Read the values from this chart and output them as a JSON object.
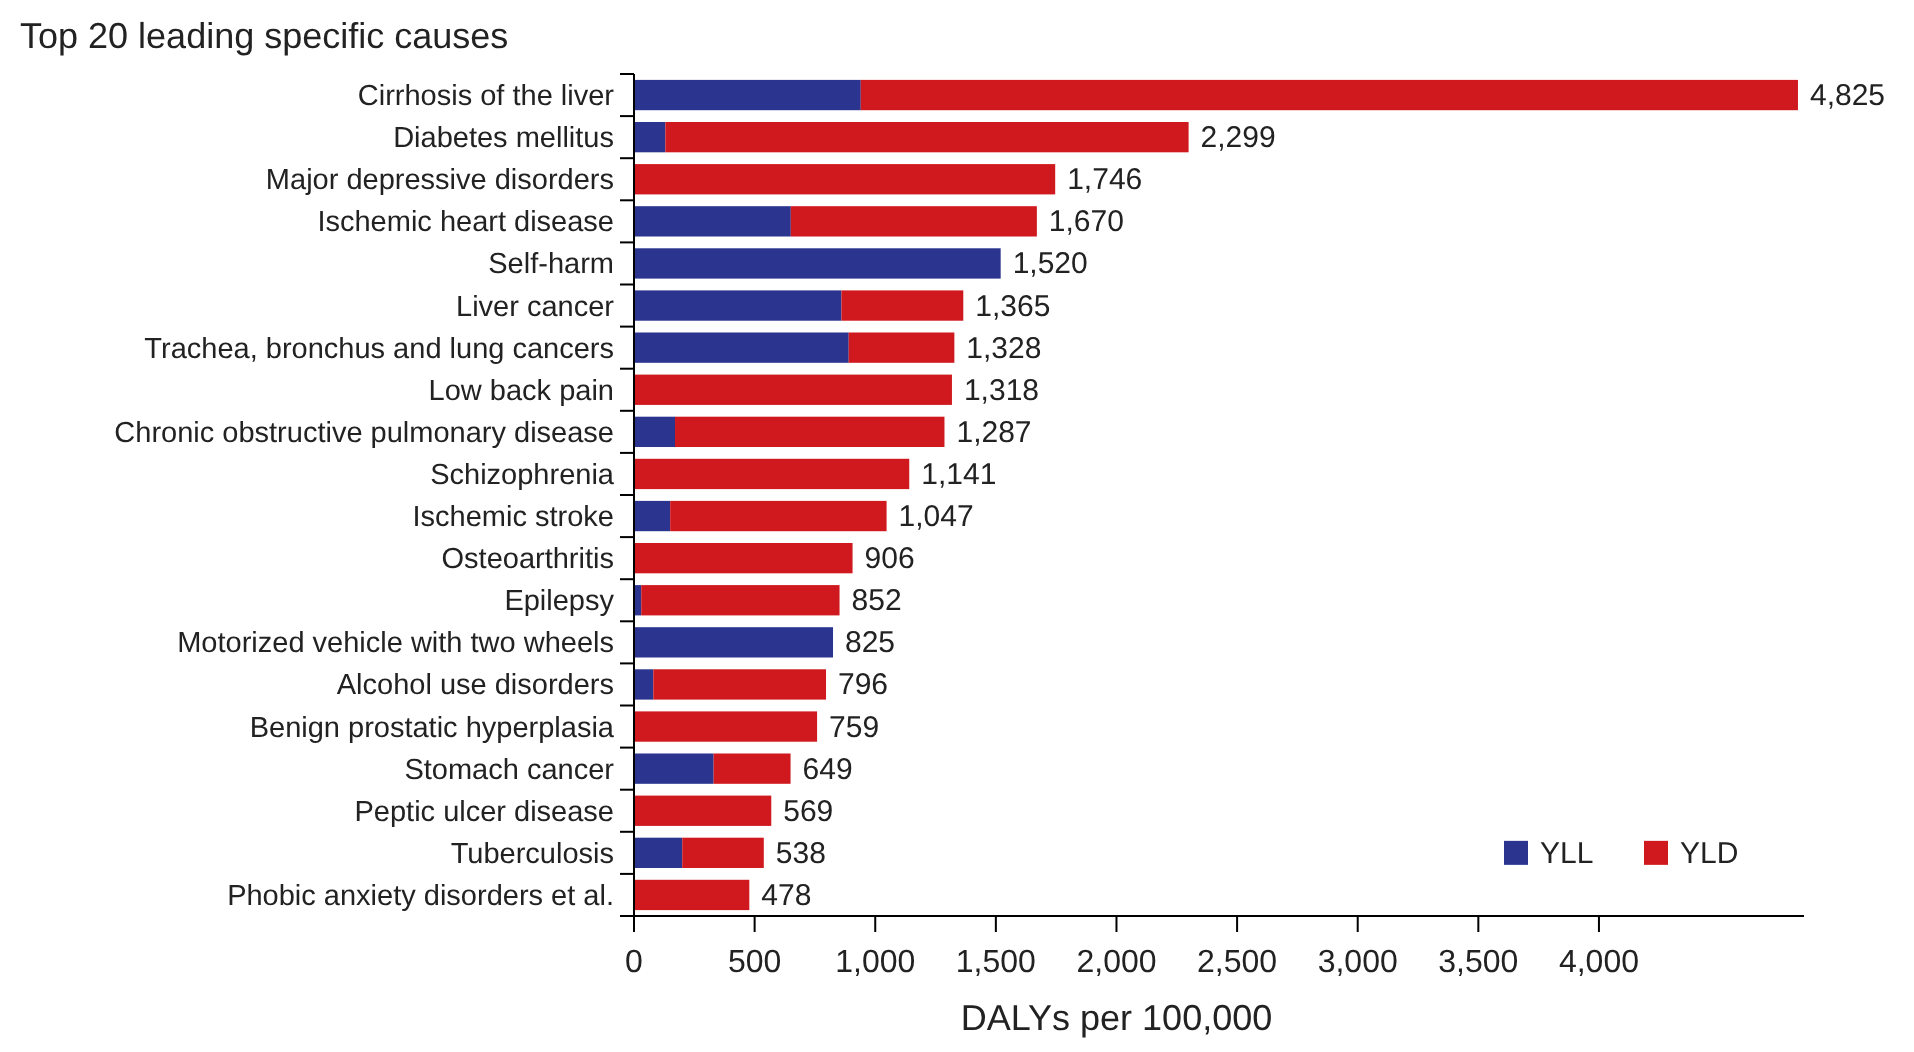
{
  "chart_data": {
    "type": "bar",
    "orientation": "horizontal",
    "stacked": true,
    "title": "Top 20 leading specific causes",
    "xlabel": "DALYs per 100,000",
    "categories": [
      "Cirrhosis of the liver",
      "Diabetes mellitus",
      "Major depressive disorders",
      "Ischemic heart disease",
      "Self-harm",
      "Liver cancer",
      "Trachea, bronchus and lung cancers",
      "Low back pain",
      "Chronic obstructive pulmonary disease",
      "Schizophrenia",
      "Ischemic stroke",
      "Osteoarthritis",
      "Epilepsy",
      "Motorized vehicle with two wheels",
      "Alcohol use disorders",
      "Benign prostatic hyperplasia",
      "Stomach cancer",
      "Peptic ulcer disease",
      "Tuberculosis",
      "Phobic anxiety disorders et al."
    ],
    "series": [
      {
        "name": "YLL",
        "color": "#2b358f",
        "values": [
          940,
          130,
          0,
          650,
          1520,
          860,
          890,
          0,
          170,
          0,
          150,
          0,
          30,
          825,
          80,
          0,
          330,
          0,
          200,
          0
        ]
      },
      {
        "name": "YLD",
        "color": "#d0191e",
        "values": [
          3885,
          2169,
          1746,
          1020,
          0,
          505,
          438,
          1318,
          1117,
          1141,
          897,
          906,
          822,
          0,
          716,
          759,
          319,
          569,
          338,
          478
        ]
      }
    ],
    "totals": [
      "4,825",
      "2,299",
      "1,746",
      "1,670",
      "1,520",
      "1,365",
      "1,328",
      "1,318",
      "1,287",
      "1,141",
      "1,047",
      "906",
      "852",
      "825",
      "796",
      "759",
      "649",
      "569",
      "538",
      "478"
    ],
    "xlim": [
      0,
      4850
    ],
    "xticks": [
      {
        "value": 0,
        "label": "0"
      },
      {
        "value": 500,
        "label": "500"
      },
      {
        "value": 1000,
        "label": "1,000"
      },
      {
        "value": 1500,
        "label": "1,500"
      },
      {
        "value": 2000,
        "label": "2,000"
      },
      {
        "value": 2500,
        "label": "2,500"
      },
      {
        "value": 3000,
        "label": "3,000"
      },
      {
        "value": 3500,
        "label": "3,500"
      },
      {
        "value": 4000,
        "label": "4,000"
      }
    ],
    "grid": false,
    "legend": "bottom right"
  }
}
